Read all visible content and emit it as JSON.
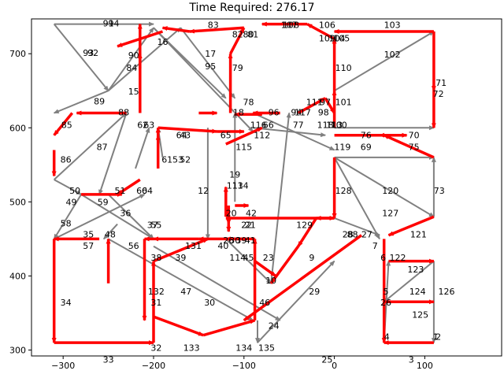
{
  "title": "Time Required: 276.17",
  "chart_data": {
    "type": "network-graph",
    "title": "Time Required: 276.17",
    "xlim": [
      -335,
      185
    ],
    "ylim": [
      292,
      747
    ],
    "xticks": [
      -300,
      -200,
      -100,
      0,
      100
    ],
    "yticks": [
      300,
      400,
      500,
      600,
      700
    ],
    "colors": {
      "path": "#ff0000",
      "edge": "#808080"
    },
    "path_edges": [
      [
        [
          -215,
          680
        ],
        [
          -215,
          740
        ]
      ],
      [
        [
          -230,
          620
        ],
        [
          -285,
          620
        ]
      ],
      [
        [
          -290,
          620
        ],
        [
          -310,
          590
        ]
      ],
      [
        [
          -310,
          570
        ],
        [
          -310,
          535
        ]
      ],
      [
        [
          -280,
          510
        ],
        [
          -235,
          510
        ]
      ],
      [
        [
          -260,
          450
        ],
        [
          -310,
          450
        ]
      ],
      [
        [
          -310,
          450
        ],
        [
          -310,
          310
        ]
      ],
      [
        [
          -310,
          310
        ],
        [
          -200,
          310
        ]
      ],
      [
        [
          -200,
          310
        ],
        [
          -200,
          420
        ]
      ],
      [
        [
          -200,
          420
        ],
        [
          -140,
          450
        ]
      ],
      [
        [
          -100,
          450
        ],
        [
          -150,
          450
        ]
      ],
      [
        [
          -150,
          450
        ],
        [
          -200,
          450
        ]
      ],
      [
        [
          -200,
          450
        ],
        [
          -210,
          450
        ]
      ],
      [
        [
          -210,
          450
        ],
        [
          -210,
          340
        ]
      ],
      [
        [
          -200,
          345
        ],
        [
          -145,
          320
        ]
      ],
      [
        [
          -145,
          320
        ],
        [
          -88,
          340
        ]
      ],
      [
        [
          -88,
          340
        ],
        [
          -88,
          450
        ]
      ],
      [
        [
          -88,
          450
        ],
        [
          -120,
          450
        ]
      ],
      [
        [
          -120,
          480
        ],
        [
          -120,
          520
        ]
      ],
      [
        [
          -117,
          495
        ],
        [
          -117,
          470
        ]
      ],
      [
        [
          -117,
          470
        ],
        [
          -117,
          460
        ]
      ],
      [
        [
          -110,
          495
        ],
        [
          -95,
          495
        ]
      ],
      [
        [
          -120,
          478
        ],
        [
          0,
          478
        ]
      ],
      [
        [
          0,
          478
        ],
        [
          -20,
          478
        ]
      ],
      [
        [
          -120,
          578
        ],
        [
          -80,
          600
        ]
      ],
      [
        [
          -80,
          618
        ],
        [
          -110,
          618
        ]
      ],
      [
        [
          -115,
          620
        ],
        [
          -115,
          700
        ]
      ],
      [
        [
          -115,
          700
        ],
        [
          -100,
          735
        ]
      ],
      [
        [
          -100,
          735
        ],
        [
          -160,
          730
        ]
      ],
      [
        [
          -160,
          730
        ],
        [
          -190,
          735
        ]
      ],
      [
        [
          -190,
          730
        ],
        [
          -240,
          710
        ]
      ],
      [
        [
          -215,
          620
        ],
        [
          -215,
          700
        ]
      ],
      [
        [
          -195,
          590
        ],
        [
          -195,
          600
        ]
      ],
      [
        [
          -195,
          600
        ],
        [
          -130,
          595
        ]
      ],
      [
        [
          -130,
          595
        ],
        [
          -100,
          595
        ]
      ],
      [
        [
          -195,
          545
        ],
        [
          -195,
          590
        ]
      ],
      [
        [
          -215,
          530
        ],
        [
          -240,
          510
        ]
      ],
      [
        [
          0,
          560
        ],
        [
          0,
          478
        ]
      ],
      [
        [
          0,
          600
        ],
        [
          0,
          650
        ]
      ],
      [
        [
          0,
          650
        ],
        [
          0,
          720
        ]
      ],
      [
        [
          0,
          720
        ],
        [
          -30,
          740
        ]
      ],
      [
        [
          -30,
          740
        ],
        [
          -80,
          740
        ]
      ],
      [
        [
          110,
          730
        ],
        [
          0,
          730
        ]
      ],
      [
        [
          110,
          730
        ],
        [
          110,
          650
        ]
      ],
      [
        [
          110,
          650
        ],
        [
          110,
          600
        ]
      ],
      [
        [
          0,
          590
        ],
        [
          80,
          590
        ]
      ],
      [
        [
          80,
          590
        ],
        [
          50,
          590
        ]
      ],
      [
        [
          110,
          560
        ],
        [
          55,
          590
        ]
      ],
      [
        [
          110,
          480
        ],
        [
          60,
          455
        ]
      ],
      [
        [
          55,
          450
        ],
        [
          55,
          310
        ]
      ],
      [
        [
          110,
          310
        ],
        [
          55,
          310
        ]
      ],
      [
        [
          55,
          365
        ],
        [
          110,
          365
        ]
      ],
      [
        [
          60,
          420
        ],
        [
          110,
          420
        ]
      ],
      [
        [
          -20,
          478
        ],
        [
          -40,
          440
        ]
      ],
      [
        [
          -40,
          440
        ],
        [
          -70,
          390
        ]
      ],
      [
        [
          30,
          455
        ],
        [
          -100,
          340
        ]
      ],
      [
        [
          -40,
          620
        ],
        [
          -10,
          640
        ]
      ],
      [
        [
          -10,
          640
        ],
        [
          0,
          620
        ]
      ],
      [
        [
          -60,
          620
        ],
        [
          -90,
          620
        ]
      ],
      [
        [
          -150,
          620
        ],
        [
          -130,
          620
        ]
      ],
      [
        [
          -88,
          420
        ],
        [
          -65,
          400
        ]
      ],
      [
        [
          -250,
          390
        ],
        [
          -250,
          450
        ]
      ]
    ],
    "gray_edges": [
      [
        [
          -310,
          740
        ],
        [
          -250,
          650
        ]
      ],
      [
        [
          -310,
          740
        ],
        [
          -200,
          740
        ]
      ],
      [
        [
          -250,
          650
        ],
        [
          -200,
          735
        ]
      ],
      [
        [
          -250,
          650
        ],
        [
          -170,
          735
        ]
      ],
      [
        [
          -250,
          650
        ],
        [
          -310,
          620
        ]
      ],
      [
        [
          -310,
          530
        ],
        [
          -230,
          620
        ]
      ],
      [
        [
          -310,
          530
        ],
        [
          -280,
          510
        ]
      ],
      [
        [
          -280,
          510
        ],
        [
          -310,
          450
        ]
      ],
      [
        [
          -310,
          450
        ],
        [
          -210,
          510
        ]
      ],
      [
        [
          -280,
          510
        ],
        [
          -200,
          450
        ]
      ],
      [
        [
          -250,
          510
        ],
        [
          -200,
          450
        ]
      ],
      [
        [
          -240,
          470
        ],
        [
          -255,
          450
        ]
      ],
      [
        [
          -200,
          735
        ],
        [
          -120,
          640
        ]
      ],
      [
        [
          -170,
          735
        ],
        [
          -110,
          640
        ]
      ],
      [
        [
          -200,
          735
        ],
        [
          -90,
          595
        ]
      ],
      [
        [
          -140,
          600
        ],
        [
          -140,
          450
        ]
      ],
      [
        [
          -200,
          440
        ],
        [
          -60,
          340
        ]
      ],
      [
        [
          -250,
          450
        ],
        [
          -90,
          340
        ]
      ],
      [
        [
          -120,
          450
        ],
        [
          -70,
          390
        ]
      ],
      [
        [
          -70,
          390
        ],
        [
          -50,
          620
        ]
      ],
      [
        [
          -90,
          600
        ],
        [
          -10,
          590
        ]
      ],
      [
        [
          -90,
          620
        ],
        [
          0,
          570
        ]
      ],
      [
        [
          0,
          650
        ],
        [
          110,
          730
        ]
      ],
      [
        [
          0,
          560
        ],
        [
          110,
          480
        ]
      ],
      [
        [
          0,
          560
        ],
        [
          110,
          560
        ]
      ],
      [
        [
          0,
          560
        ],
        [
          50,
          450
        ]
      ],
      [
        [
          0,
          478
        ],
        [
          50,
          455
        ]
      ],
      [
        [
          110,
          420
        ],
        [
          110,
          310
        ]
      ],
      [
        [
          55,
          310
        ],
        [
          60,
          420
        ]
      ],
      [
        [
          110,
          420
        ],
        [
          55,
          365
        ]
      ],
      [
        [
          110,
          480
        ],
        [
          110,
          560
        ]
      ],
      [
        [
          0,
          600
        ],
        [
          110,
          600
        ]
      ],
      [
        [
          -85,
          310
        ],
        [
          0,
          420
        ]
      ],
      [
        [
          -85,
          340
        ],
        [
          -85,
          310
        ]
      ],
      [
        [
          -190,
          560
        ],
        [
          -195,
          600
        ]
      ],
      [
        [
          -110,
          500
        ],
        [
          -110,
          620
        ]
      ],
      [
        [
          -230,
          620
        ],
        [
          -260,
          510
        ]
      ],
      [
        [
          -220,
          545
        ],
        [
          -205,
          600
        ]
      ]
    ],
    "node_labels": [
      [
        "91",
        -250,
        740
      ],
      [
        "94",
        -244,
        740
      ],
      [
        "93",
        -272,
        700
      ],
      [
        "92",
        -267,
        700
      ],
      [
        "90",
        -222,
        697
      ],
      [
        "84",
        -224,
        680
      ],
      [
        "16",
        -190,
        715
      ],
      [
        "83",
        -134,
        738
      ],
      [
        "17",
        -137,
        699
      ],
      [
        "95",
        -137,
        682
      ],
      [
        "82",
        -107,
        725
      ],
      [
        "80",
        -95,
        725
      ],
      [
        "81",
        -90,
        725
      ],
      [
        "79",
        -107,
        680
      ],
      [
        "107",
        -50,
        738
      ],
      [
        "108",
        -48,
        738
      ],
      [
        "106",
        -8,
        738
      ],
      [
        "109",
        -8,
        720
      ],
      [
        "104",
        3,
        720
      ],
      [
        "105",
        8,
        720
      ],
      [
        "103",
        64,
        738
      ],
      [
        "102",
        64,
        698
      ],
      [
        "110",
        10,
        680
      ],
      [
        "71",
        118,
        660
      ],
      [
        "72",
        115,
        645
      ],
      [
        "15",
        -222,
        648
      ],
      [
        "89",
        -260,
        635
      ],
      [
        "88",
        -233,
        620
      ],
      [
        "78",
        -95,
        634
      ],
      [
        "111",
        -22,
        634
      ],
      [
        "97",
        -10,
        634
      ],
      [
        "101",
        10,
        634
      ],
      [
        "18",
        -106,
        620
      ],
      [
        "96",
        -67,
        620
      ],
      [
        "94",
        -42,
        620
      ],
      [
        "117",
        -35,
        620
      ],
      [
        "98",
        -12,
        620
      ],
      [
        "85",
        -296,
        603
      ],
      [
        "62",
        -212,
        603
      ],
      [
        "63",
        -205,
        603
      ],
      [
        "64",
        -169,
        589
      ],
      [
        "43",
        -165,
        589
      ],
      [
        "65",
        -120,
        589
      ],
      [
        "116",
        -84,
        603
      ],
      [
        "66",
        -73,
        603
      ],
      [
        "77",
        -40,
        603
      ],
      [
        "112",
        -80,
        589
      ],
      [
        "118",
        -10,
        603
      ],
      [
        "113",
        0,
        603
      ],
      [
        "100",
        5,
        603
      ],
      [
        "76",
        35,
        589
      ],
      [
        "70",
        88,
        589
      ],
      [
        "75",
        88,
        573
      ],
      [
        "87",
        -257,
        573
      ],
      [
        "86",
        -297,
        556
      ],
      [
        "61",
        -185,
        556
      ],
      [
        "53",
        -173,
        556
      ],
      [
        "52",
        -165,
        556
      ],
      [
        "115",
        -100,
        573
      ],
      [
        "119",
        9,
        573
      ],
      [
        "69",
        35,
        573
      ],
      [
        "19",
        -110,
        536
      ],
      [
        "113",
        -110,
        521
      ],
      [
        "114",
        -104,
        521
      ],
      [
        "50",
        -287,
        514
      ],
      [
        "51",
        -237,
        514
      ],
      [
        "60",
        -213,
        514
      ],
      [
        "64",
        -207,
        514
      ],
      [
        "12",
        -145,
        514
      ],
      [
        "128",
        10,
        514
      ],
      [
        "120",
        62,
        514
      ],
      [
        "73",
        116,
        514
      ],
      [
        "49",
        -291,
        499
      ],
      [
        "59",
        -256,
        499
      ],
      [
        "36",
        -231,
        484
      ],
      [
        "20",
        -114,
        484
      ],
      [
        "42",
        -92,
        484
      ],
      [
        "127",
        62,
        484
      ],
      [
        "58",
        -297,
        470
      ],
      [
        "22",
        -97,
        468
      ],
      [
        "21",
        -93,
        468
      ],
      [
        "37",
        -201,
        468
      ],
      [
        "55",
        -197,
        468
      ],
      [
        "129",
        -33,
        468
      ],
      [
        "35",
        -272,
        455
      ],
      [
        "48",
        -248,
        455
      ],
      [
        "28",
        15,
        455
      ],
      [
        "88",
        20,
        455
      ],
      [
        "27",
        36,
        455
      ],
      [
        "121",
        93,
        455
      ],
      [
        "57",
        -272,
        440
      ],
      [
        "56",
        -222,
        440
      ],
      [
        "131",
        -156,
        440
      ],
      [
        "40",
        -123,
        440
      ],
      [
        "26",
        -117,
        447
      ],
      [
        "30",
        -110,
        447
      ],
      [
        "39",
        -103,
        447
      ],
      [
        "41",
        -93,
        447
      ],
      [
        "7",
        45,
        440
      ],
      [
        "38",
        -197,
        424
      ],
      [
        "39",
        -170,
        424
      ],
      [
        "114",
        -107,
        424
      ],
      [
        "45",
        -95,
        424
      ],
      [
        "23",
        -73,
        424
      ],
      [
        "9",
        -25,
        424
      ],
      [
        "6",
        54,
        424
      ],
      [
        "122",
        70,
        424
      ],
      [
        "123",
        90,
        408
      ],
      [
        "10",
        -70,
        393
      ],
      [
        "132",
        -197,
        378
      ],
      [
        "47",
        -164,
        378
      ],
      [
        "29",
        -22,
        378
      ],
      [
        "5",
        57,
        378
      ],
      [
        "124",
        92,
        378
      ],
      [
        "126",
        124,
        378
      ],
      [
        "31",
        -197,
        363
      ],
      [
        "30",
        -138,
        363
      ],
      [
        "46",
        -77,
        363
      ],
      [
        "26",
        57,
        363
      ],
      [
        "125",
        95,
        347
      ],
      [
        "24",
        -67,
        332
      ],
      [
        "4",
        58,
        317
      ],
      [
        "1",
        112,
        317
      ],
      [
        "2",
        115,
        317
      ],
      [
        "34",
        -297,
        363
      ],
      [
        "32",
        -197,
        302
      ],
      [
        "133",
        -158,
        302
      ],
      [
        "134",
        -100,
        302
      ],
      [
        "135",
        -75,
        302
      ],
      [
        "33",
        -250,
        286
      ],
      [
        "25",
        -8,
        286
      ],
      [
        "3",
        85,
        286
      ]
    ]
  }
}
